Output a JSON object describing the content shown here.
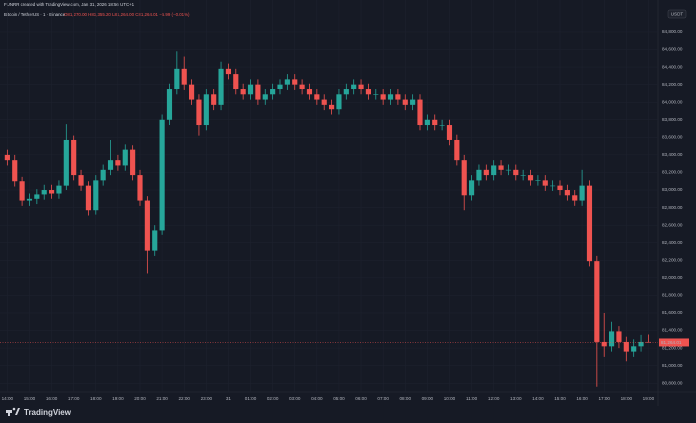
{
  "chart_data": {
    "type": "candlestick",
    "title": "FUNRR created with TradingView.com, Jan 31, 2026 18:56 UTC+1",
    "symbol": "Bitcoin / TetherUS · 1 · Binance",
    "legend_ohlc": "O81,270.00 H81,355.20 L81,264.00 C81,264.01 −5.99 (−0.01%)",
    "currency": "USDT",
    "brand": "TradingView",
    "up_color": "#26a69a",
    "down_color": "#ef5350",
    "grid": true,
    "last_price": {
      "value": 81264.01,
      "label": "81,264.01"
    },
    "open": [
      83400,
      83340,
      83100,
      82880,
      82900,
      82950,
      83000,
      82960,
      83050,
      83570,
      83170,
      83050,
      82770,
      83110,
      83230,
      83340,
      83280,
      83460,
      83170,
      82880,
      82310,
      82540,
      83800,
      84150,
      84380,
      84200,
      84030,
      83740,
      84090,
      83970,
      84380,
      84320,
      84150,
      84090,
      84200,
      84030,
      84090,
      84150,
      84200,
      84260,
      84200,
      84150,
      84090,
      84030,
      83970,
      83920,
      84090,
      84150,
      84200,
      84150,
      84090,
      84090,
      84030,
      84090,
      84030,
      83970,
      84030,
      83740,
      83800,
      83740,
      83740,
      83570,
      83340,
      82940,
      83110,
      83230,
      83170,
      83280,
      83230,
      83230,
      83170,
      83170,
      83110,
      83110,
      83050,
      83050,
      83000,
      82940,
      82880,
      83050,
      82190,
      81270,
      81220,
      81390,
      81270,
      81160,
      81220,
      81270
    ],
    "high": [
      83460,
      83400,
      83150,
      82960,
      83010,
      83060,
      83060,
      83110,
      83750,
      83620,
      83230,
      83100,
      83170,
      83290,
      83570,
      83400,
      83520,
      83510,
      83230,
      82930,
      82600,
      83860,
      84210,
      84580,
      84520,
      84260,
      84090,
      84150,
      84150,
      84460,
      84440,
      84380,
      84210,
      84260,
      84260,
      84150,
      84210,
      84260,
      84320,
      84320,
      84260,
      84210,
      84150,
      84090,
      84030,
      84150,
      84210,
      84260,
      84260,
      84210,
      84150,
      84150,
      84150,
      84150,
      84090,
      84090,
      84090,
      83860,
      83860,
      83800,
      83800,
      83630,
      83400,
      83170,
      83290,
      83290,
      83340,
      83340,
      83290,
      83290,
      83230,
      83230,
      83170,
      83170,
      83110,
      83110,
      83060,
      83000,
      83230,
      83110,
      82250,
      81600,
      81500,
      81450,
      81330,
      81300,
      81350,
      81355.2
    ],
    "low": [
      83280,
      83040,
      82820,
      82820,
      82840,
      82890,
      82900,
      82900,
      83000,
      83110,
      82990,
      82710,
      82720,
      83050,
      83170,
      83220,
      83220,
      83110,
      82820,
      82050,
      82250,
      82490,
      83740,
      84090,
      84140,
      83970,
      83620,
      83680,
      83910,
      83910,
      84260,
      84090,
      84030,
      84030,
      83970,
      83970,
      84030,
      84090,
      84140,
      84140,
      84090,
      84030,
      83970,
      83910,
      83860,
      83860,
      84030,
      84090,
      84090,
      84030,
      84030,
      83970,
      83970,
      83970,
      83910,
      83910,
      83680,
      83680,
      83680,
      83680,
      83510,
      83280,
      82770,
      82880,
      83050,
      83110,
      83110,
      83170,
      83170,
      83110,
      83110,
      83050,
      83050,
      82990,
      82990,
      82940,
      82880,
      82820,
      82820,
      82130,
      80760,
      81100,
      81160,
      81200,
      81050,
      81100,
      81160,
      81264
    ],
    "close": [
      83340,
      83100,
      82880,
      82900,
      82950,
      83000,
      82960,
      83050,
      83570,
      83170,
      83050,
      82770,
      83110,
      83230,
      83340,
      83280,
      83460,
      83170,
      82880,
      82310,
      82540,
      83800,
      84150,
      84380,
      84200,
      84030,
      83740,
      84090,
      83970,
      84380,
      84320,
      84150,
      84090,
      84200,
      84030,
      84090,
      84150,
      84200,
      84260,
      84200,
      84150,
      84090,
      84030,
      83970,
      83920,
      84090,
      84150,
      84200,
      84150,
      84090,
      84090,
      84030,
      84090,
      84030,
      83970,
      84030,
      83740,
      83800,
      83740,
      83740,
      83570,
      83340,
      82940,
      83110,
      83230,
      83170,
      83280,
      83230,
      83230,
      83170,
      83170,
      83110,
      83110,
      83050,
      83050,
      83000,
      82940,
      82880,
      83050,
      82190,
      81270,
      81220,
      81390,
      81270,
      81160,
      81220,
      81270,
      81264.01
    ],
    "xlim": [
      -1,
      88.3
    ],
    "xticks": [
      {
        "value": 0,
        "label": "14:00"
      },
      {
        "value": 3,
        "label": "15:00"
      },
      {
        "value": 6,
        "label": "16:00"
      },
      {
        "value": 9,
        "label": "17:00"
      },
      {
        "value": 12,
        "label": "18:00"
      },
      {
        "value": 15,
        "label": "19:00"
      },
      {
        "value": 18,
        "label": "20:00"
      },
      {
        "value": 21,
        "label": "21:00"
      },
      {
        "value": 24,
        "label": "22:00"
      },
      {
        "value": 27,
        "label": "23:00"
      },
      {
        "value": 30,
        "label": "31"
      },
      {
        "value": 33,
        "label": "01:00"
      },
      {
        "value": 36,
        "label": "02:00"
      },
      {
        "value": 39,
        "label": "03:00"
      },
      {
        "value": 42,
        "label": "04:00"
      },
      {
        "value": 45,
        "label": "05:00"
      },
      {
        "value": 48,
        "label": "06:00"
      },
      {
        "value": 51,
        "label": "07:00"
      },
      {
        "value": 54,
        "label": "08:00"
      },
      {
        "value": 57,
        "label": "09:00"
      },
      {
        "value": 60,
        "label": "10:00"
      },
      {
        "value": 63,
        "label": "11:00"
      },
      {
        "value": 66,
        "label": "12:00"
      },
      {
        "value": 69,
        "label": "13:00"
      },
      {
        "value": 72,
        "label": "14:00"
      },
      {
        "value": 75,
        "label": "15:00"
      },
      {
        "value": 78,
        "label": "16:00"
      },
      {
        "value": 81,
        "label": "17:00"
      },
      {
        "value": 84,
        "label": "18:00"
      },
      {
        "value": 87,
        "label": "19:00"
      }
    ],
    "ylim": [
      80700,
      85050
    ],
    "yticks": [
      {
        "value": 84800,
        "label": "84,800.00"
      },
      {
        "value": 84600,
        "label": "84,600.00"
      },
      {
        "value": 84400,
        "label": "84,400.00"
      },
      {
        "value": 84200,
        "label": "84,200.00"
      },
      {
        "value": 84000,
        "label": "84,000.00"
      },
      {
        "value": 83800,
        "label": "83,800.00"
      },
      {
        "value": 83600,
        "label": "83,600.00"
      },
      {
        "value": 83400,
        "label": "83,400.00"
      },
      {
        "value": 83200,
        "label": "83,200.00"
      },
      {
        "value": 83000,
        "label": "83,000.00"
      },
      {
        "value": 82800,
        "label": "82,800.00"
      },
      {
        "value": 82600,
        "label": "82,600.00"
      },
      {
        "value": 82400,
        "label": "82,400.00"
      },
      {
        "value": 82200,
        "label": "82,200.00"
      },
      {
        "value": 82000,
        "label": "82,000.00"
      },
      {
        "value": 81800,
        "label": "81,800.00"
      },
      {
        "value": 81600,
        "label": "81,600.00"
      },
      {
        "value": 81400,
        "label": "81,400.00"
      },
      {
        "value": 81200,
        "label": "81,200.00"
      },
      {
        "value": 81000,
        "label": "81,000.00"
      },
      {
        "value": 80800,
        "label": "80,800.00"
      }
    ]
  }
}
